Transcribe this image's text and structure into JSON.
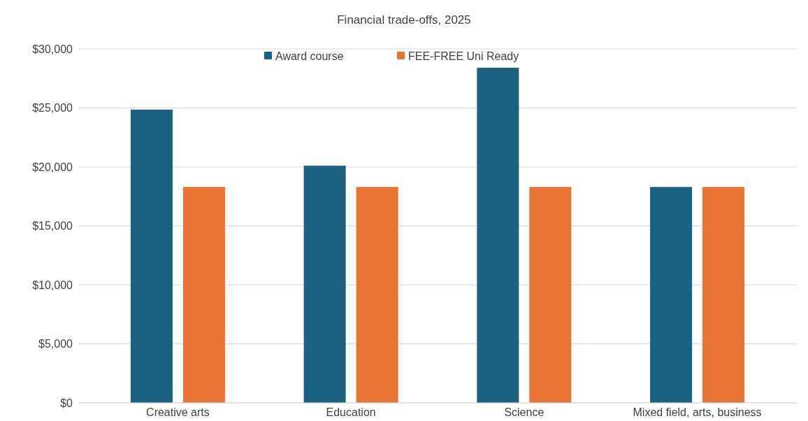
{
  "chart_data": {
    "type": "bar",
    "title": "Financial trade-offs, 2025",
    "categories": [
      "Creative arts",
      "Education",
      "Science",
      "Mixed field, arts, business"
    ],
    "series": [
      {
        "name": "Award course",
        "color": "#1b6282",
        "values": [
          24850,
          20100,
          28400,
          18300
        ]
      },
      {
        "name": "FEE-FREE Uni Ready",
        "color": "#e87332",
        "values": [
          18300,
          18300,
          18300,
          18300
        ]
      }
    ],
    "ylim": [
      0,
      30000
    ],
    "yticks": [
      {
        "value": 0,
        "label": "$0"
      },
      {
        "value": 5000,
        "label": "$5,000"
      },
      {
        "value": 10000,
        "label": "$10,000"
      },
      {
        "value": 15000,
        "label": "$15,000"
      },
      {
        "value": 20000,
        "label": "$20,000"
      },
      {
        "value": 25000,
        "label": "$25,000"
      },
      {
        "value": 30000,
        "label": "$30,000"
      }
    ],
    "grid": "y",
    "legend": "top"
  }
}
